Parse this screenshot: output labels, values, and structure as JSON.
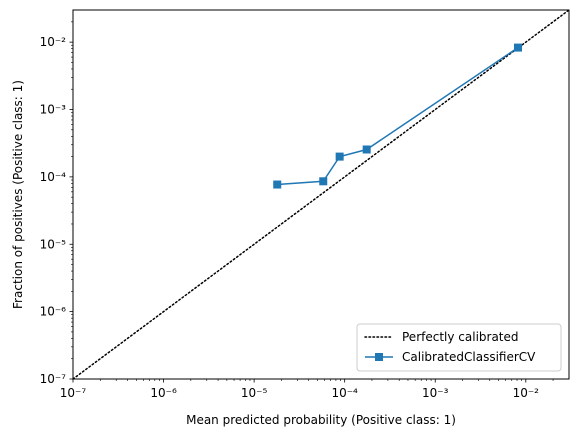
{
  "chart_data": {
    "type": "line",
    "title": "",
    "xlabel": "Mean predicted probability (Positive class: 1)",
    "ylabel": "Fraction of positives (Positive class: 1)",
    "xscale": "log",
    "yscale": "log",
    "xlim": [
      1e-07,
      0.03
    ],
    "ylim": [
      1e-07,
      0.03
    ],
    "grid": false,
    "legend_position": "lower right",
    "xticks": [
      {
        "value": 1e-07,
        "label": "10⁻⁷"
      },
      {
        "value": 1e-06,
        "label": "10⁻⁶"
      },
      {
        "value": 1e-05,
        "label": "10⁻⁵"
      },
      {
        "value": 0.0001,
        "label": "10⁻⁴"
      },
      {
        "value": 0.001,
        "label": "10⁻³"
      },
      {
        "value": 0.01,
        "label": "10⁻²"
      }
    ],
    "yticks": [
      {
        "value": 1e-07,
        "label": "10⁻⁷"
      },
      {
        "value": 1e-06,
        "label": "10⁻⁶"
      },
      {
        "value": 1e-05,
        "label": "10⁻⁵"
      },
      {
        "value": 0.0001,
        "label": "10⁻⁴"
      },
      {
        "value": 0.001,
        "label": "10⁻³"
      },
      {
        "value": 0.01,
        "label": "10⁻²"
      }
    ],
    "reference_line": {
      "name": "Perfectly calibrated",
      "style": "dotted",
      "color": "#000000",
      "x": [
        1e-07,
        0.03
      ],
      "y": [
        1e-07,
        0.03
      ]
    },
    "series": [
      {
        "name": "CalibratedClassifierCV",
        "color": "#1f77b4",
        "marker": "square",
        "x": [
          1.8e-05,
          5.8e-05,
          8.8e-05,
          0.000175,
          0.0082
        ],
        "y": [
          7.7e-05,
          8.6e-05,
          0.0002,
          0.000255,
          0.0083
        ]
      }
    ]
  }
}
